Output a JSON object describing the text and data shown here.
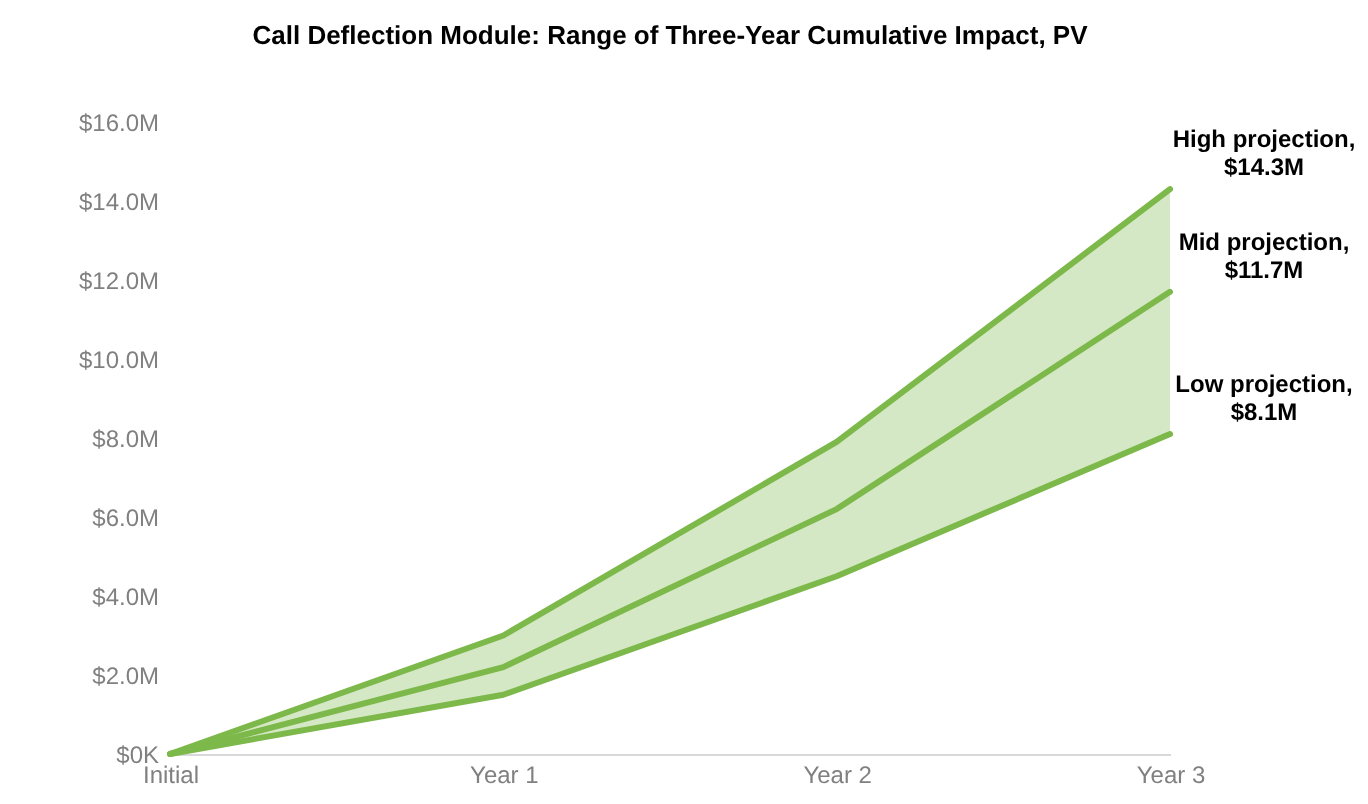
{
  "chart_data": {
    "type": "line",
    "title": "Call Deflection Module: Range of Three-Year Cumulative Impact, PV",
    "categories": [
      "Initial",
      "Year 1",
      "Year 2",
      "Year 3"
    ],
    "series": [
      {
        "color": "#7cb94a",
        "values": [
          0,
          3.0,
          7.9,
          14.3
        ]
      },
      {
        "color": "#7cb94a",
        "values": [
          0,
          2.2,
          6.2,
          11.7
        ],
        "lower": [
          0,
          1.5,
          4.5,
          8.1
        ],
        "upper": [
          0,
          3.0,
          7.9,
          14.3
        ]
      },
      {
        "color": "#7cb94a",
        "values": [
          0,
          1.5,
          4.5,
          8.1
        ]
      }
    ],
    "ylim": [
      0,
      16
    ],
    "yticks": [
      {
        "value": 0,
        "label": "$0K"
      },
      {
        "value": 2,
        "label": "$2.0M"
      },
      {
        "value": 4,
        "label": "$4.0M"
      },
      {
        "value": 6,
        "label": "$6.0M"
      },
      {
        "value": 8,
        "label": "$8.0M"
      },
      {
        "value": 10,
        "label": "$10.0M"
      },
      {
        "value": 12,
        "label": "$12.0M"
      },
      {
        "value": 14,
        "label": "$14.0M"
      },
      {
        "value": 16,
        "label": "$16.0M"
      }
    ],
    "grid": false,
    "marker": "none",
    "line_style": "solid",
    "annotations": [
      {
        "text": "High projection,\n$14.3M",
        "x": "Year 3",
        "y": 14.3
      },
      {
        "text": "Mid projection,\n$11.7M",
        "x": "Year 3",
        "y": 11.7
      },
      {
        "text": "Low projection,\n$8.1M",
        "x": "Year 3",
        "y": 8.1
      }
    ]
  }
}
